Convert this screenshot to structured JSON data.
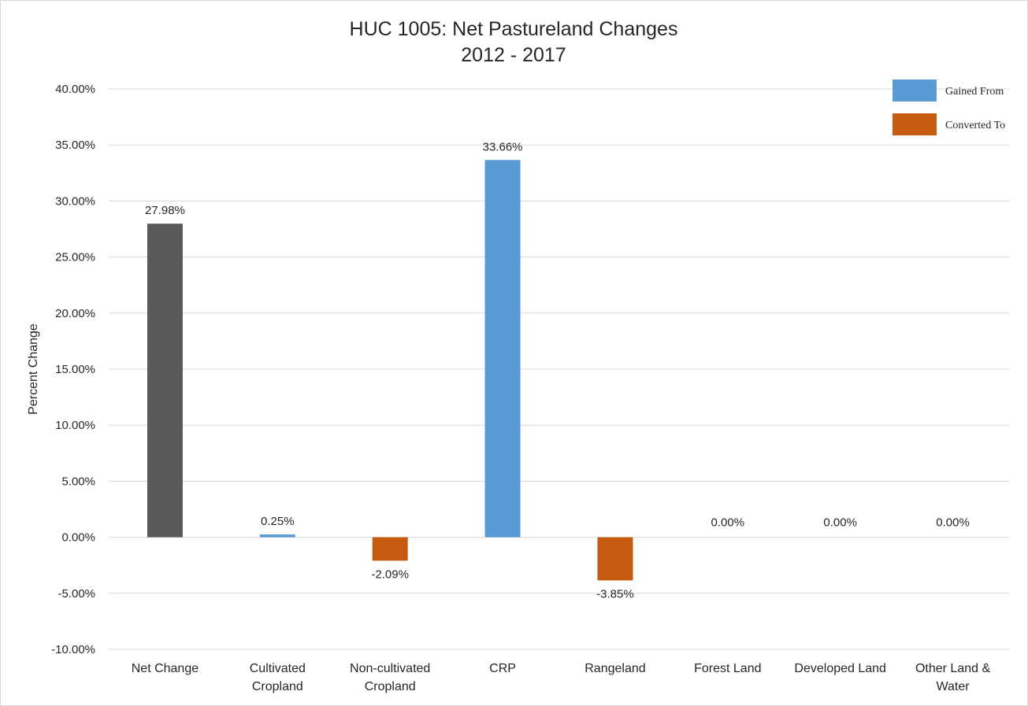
{
  "chart_data": {
    "type": "bar",
    "title": [
      "HUC 1005: Net Pastureland Changes",
      "2012 - 2017"
    ],
    "xlabel": "",
    "ylabel": "Percent Change",
    "ylim": [
      -10,
      40
    ],
    "ytick_step": 5,
    "ytick_labels": [
      "-10.00%",
      "-5.00%",
      "0.00%",
      "5.00%",
      "10.00%",
      "15.00%",
      "20.00%",
      "25.00%",
      "30.00%",
      "35.00%",
      "40.00%"
    ],
    "categories": [
      [
        "Net Change"
      ],
      [
        "Cultivated",
        "Cropland"
      ],
      [
        "Non-cultivated",
        "Cropland"
      ],
      [
        "CRP"
      ],
      [
        "Rangeland"
      ],
      [
        "Forest Land"
      ],
      [
        "Developed Land"
      ],
      [
        "Other Land &",
        "Water"
      ]
    ],
    "values": [
      27.98,
      0.25,
      -2.09,
      33.66,
      -3.85,
      0.0,
      0.0,
      0.0
    ],
    "data_labels": [
      "27.98%",
      "0.25%",
      "-2.09%",
      "33.66%",
      "-3.85%",
      "0.00%",
      "0.00%",
      "0.00%"
    ],
    "bar_kinds": [
      "net",
      "gained",
      "converted",
      "gained",
      "converted",
      "gained",
      "gained",
      "gained"
    ],
    "legend": {
      "placement": "top-right",
      "items": [
        {
          "kind": "gained",
          "label": "Gained From"
        },
        {
          "kind": "converted",
          "label": "Converted To"
        }
      ]
    },
    "grid": true,
    "colors": {
      "net": "#595959",
      "gained": "#5b9bd5",
      "converted": "#c55a11",
      "grid": "#d9d9d9",
      "text": "#262626"
    }
  }
}
